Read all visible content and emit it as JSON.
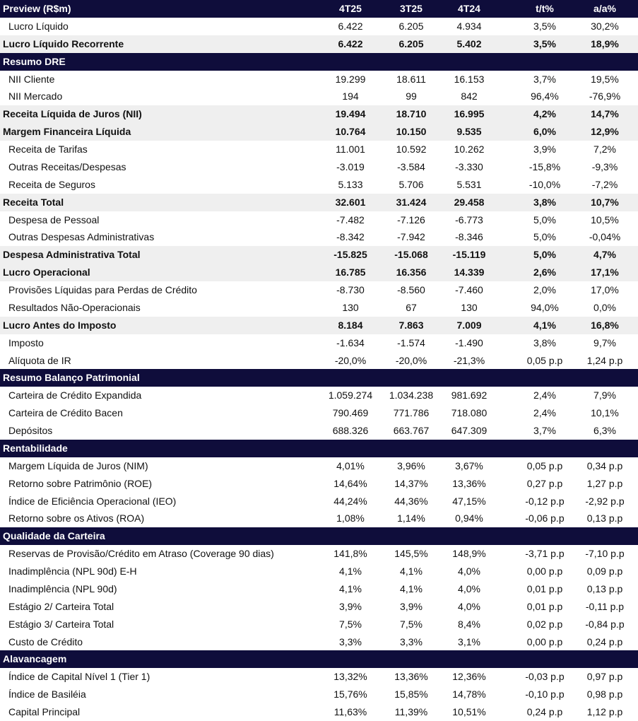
{
  "header": {
    "title": "Preview (R$m)",
    "columns": [
      "4T25",
      "3T25",
      "4T24",
      "t/t%",
      "a/a%"
    ]
  },
  "sections": [
    {
      "title": null,
      "rows": [
        {
          "label": "Lucro Líquido",
          "bold": false,
          "values": [
            "6.422",
            "6.205",
            "4.934",
            "3,5%",
            "30,2%"
          ]
        },
        {
          "label": "Lucro Líquido Recorrente",
          "bold": true,
          "values": [
            "6.422",
            "6.205",
            "5.402",
            "3,5%",
            "18,9%"
          ]
        }
      ]
    },
    {
      "title": "Resumo DRE",
      "rows": [
        {
          "label": "NII Cliente",
          "bold": false,
          "values": [
            "19.299",
            "18.611",
            "16.153",
            "3,7%",
            "19,5%"
          ]
        },
        {
          "label": "NII Mercado",
          "bold": false,
          "values": [
            "194",
            "99",
            "842",
            "96,4%",
            "-76,9%"
          ]
        },
        {
          "label": "Receita Líquida de Juros (NII)",
          "bold": true,
          "values": [
            "19.494",
            "18.710",
            "16.995",
            "4,2%",
            "14,7%"
          ]
        },
        {
          "label": "Margem Financeira Líquida",
          "bold": true,
          "values": [
            "10.764",
            "10.150",
            "9.535",
            "6,0%",
            "12,9%"
          ]
        },
        {
          "label": "Receita de Tarifas",
          "bold": false,
          "values": [
            "11.001",
            "10.592",
            "10.262",
            "3,9%",
            "7,2%"
          ]
        },
        {
          "label": "Outras Receitas/Despesas",
          "bold": false,
          "values": [
            "-3.019",
            "-3.584",
            "-3.330",
            "-15,8%",
            "-9,3%"
          ]
        },
        {
          "label": "Receita de Seguros",
          "bold": false,
          "values": [
            "5.133",
            "5.706",
            "5.531",
            "-10,0%",
            "-7,2%"
          ]
        },
        {
          "label": "Receita Total",
          "bold": true,
          "values": [
            "32.601",
            "31.424",
            "29.458",
            "3,8%",
            "10,7%"
          ]
        },
        {
          "label": "Despesa de Pessoal",
          "bold": false,
          "values": [
            "-7.482",
            "-7.126",
            "-6.773",
            "5,0%",
            "10,5%"
          ]
        },
        {
          "label": "Outras Despesas Administrativas",
          "bold": false,
          "values": [
            "-8.342",
            "-7.942",
            "-8.346",
            "5,0%",
            "-0,04%"
          ]
        },
        {
          "label": "Despesa Administrativa Total",
          "bold": true,
          "values": [
            "-15.825",
            "-15.068",
            "-15.119",
            "5,0%",
            "4,7%"
          ]
        },
        {
          "label": "Lucro Operacional",
          "bold": true,
          "values": [
            "16.785",
            "16.356",
            "14.339",
            "2,6%",
            "17,1%"
          ]
        },
        {
          "label": "Provisões Líquidas para Perdas de Crédito",
          "bold": false,
          "values": [
            "-8.730",
            "-8.560",
            "-7.460",
            "2,0%",
            "17,0%"
          ]
        },
        {
          "label": "Resultados Não-Operacionais",
          "bold": false,
          "values": [
            "130",
            "67",
            "130",
            "94,0%",
            "0,0%"
          ]
        },
        {
          "label": "Lucro Antes do Imposto",
          "bold": true,
          "values": [
            "8.184",
            "7.863",
            "7.009",
            "4,1%",
            "16,8%"
          ]
        },
        {
          "label": "Imposto",
          "bold": false,
          "values": [
            "-1.634",
            "-1.574",
            "-1.490",
            "3,8%",
            "9,7%"
          ]
        },
        {
          "label": "Alíquota de IR",
          "bold": false,
          "values": [
            "-20,0%",
            "-20,0%",
            "-21,3%",
            "0,05 p.p",
            "1,24 p.p"
          ]
        }
      ]
    },
    {
      "title": "Resumo Balanço Patrimonial",
      "rows": [
        {
          "label": "Carteira de Crédito Expandida",
          "bold": false,
          "values": [
            "1.059.274",
            "1.034.238",
            "981.692",
            "2,4%",
            "7,9%"
          ]
        },
        {
          "label": "Carteira de Crédito Bacen",
          "bold": false,
          "values": [
            "790.469",
            "771.786",
            "718.080",
            "2,4%",
            "10,1%"
          ]
        },
        {
          "label": "Depósitos",
          "bold": false,
          "values": [
            "688.326",
            "663.767",
            "647.309",
            "3,7%",
            "6,3%"
          ]
        }
      ]
    },
    {
      "title": "Rentabilidade",
      "rows": [
        {
          "label": "Margem Líquida de Juros (NIM)",
          "bold": false,
          "values": [
            "4,01%",
            "3,96%",
            "3,67%",
            "0,05 p.p",
            "0,34 p.p"
          ]
        },
        {
          "label": "Retorno sobre Patrimônio (ROE)",
          "bold": false,
          "values": [
            "14,64%",
            "14,37%",
            "13,36%",
            "0,27 p.p",
            "1,27 p.p"
          ]
        },
        {
          "label": "Índice de Eficiência Operacional (IEO)",
          "bold": false,
          "values": [
            "44,24%",
            "44,36%",
            "47,15%",
            "-0,12 p.p",
            "-2,92 p.p"
          ]
        },
        {
          "label": "Retorno sobre os Ativos (ROA)",
          "bold": false,
          "values": [
            "1,08%",
            "1,14%",
            "0,94%",
            "-0,06 p.p",
            "0,13 p.p"
          ]
        }
      ]
    },
    {
      "title": "Qualidade da Carteira",
      "rows": [
        {
          "label": "Reservas de Provisão/Crédito em Atraso (Coverage 90 dias)",
          "bold": false,
          "values": [
            "141,8%",
            "145,5%",
            "148,9%",
            "-3,71 p.p",
            "-7,10 p.p"
          ]
        },
        {
          "label": "Inadimplência (NPL 90d) E-H",
          "bold": false,
          "values": [
            "4,1%",
            "4,1%",
            "4,0%",
            "0,00 p.p",
            "0,09 p.p"
          ]
        },
        {
          "label": "Inadimplência (NPL 90d)",
          "bold": false,
          "values": [
            "4,1%",
            "4,1%",
            "4,0%",
            "0,01 p.p",
            "0,13 p.p"
          ]
        },
        {
          "label": "Estágio 2/ Carteira Total",
          "bold": false,
          "values": [
            "3,9%",
            "3,9%",
            "4,0%",
            "0,01 p.p",
            "-0,11 p.p"
          ]
        },
        {
          "label": "Estágio 3/ Carteira Total",
          "bold": false,
          "values": [
            "7,5%",
            "7,5%",
            "8,4%",
            "0,02 p.p",
            "-0,84 p.p"
          ]
        },
        {
          "label": "Custo de Crédito",
          "bold": false,
          "values": [
            "3,3%",
            "3,3%",
            "3,1%",
            "0,00 p.p",
            "0,24 p.p"
          ]
        }
      ]
    },
    {
      "title": "Alavancagem",
      "rows": [
        {
          "label": "Índice de Capital Nível 1 (Tier 1)",
          "bold": false,
          "values": [
            "13,32%",
            "13,36%",
            "12,36%",
            "-0,03 p.p",
            "0,97 p.p"
          ]
        },
        {
          "label": "Índice de Basiléia",
          "bold": false,
          "values": [
            "15,76%",
            "15,85%",
            "14,78%",
            "-0,10 p.p",
            "0,98 p.p"
          ]
        },
        {
          "label": "Capital Principal",
          "bold": false,
          "values": [
            "11,63%",
            "11,39%",
            "10,51%",
            "0,24 p.p",
            "1,12 p.p"
          ]
        }
      ]
    }
  ],
  "colors": {
    "header_bg": "#0f0d3b",
    "bold_row_bg": "#efefef"
  }
}
